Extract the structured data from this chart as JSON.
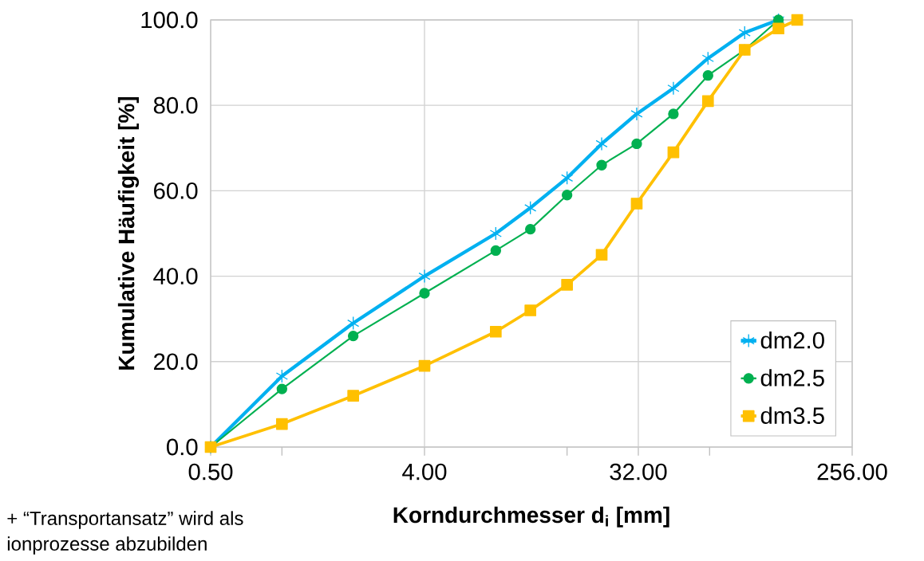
{
  "chart_data": {
    "type": "line",
    "xlabel": "Korndurchmesser d$_{i}$  [mm]",
    "ylabel": "Kumulative Häufigkeit [%]",
    "log": "x",
    "x": [
      0.5,
      1,
      2,
      4,
      8,
      11.2,
      16,
      22.4,
      31.5,
      45,
      63,
      90,
      125
    ],
    "series": [
      {
        "name": "dm2.0",
        "color": "#00b0f0",
        "marker": "cross",
        "values": [
          0,
          16.6,
          29,
          40,
          50,
          56,
          63,
          71,
          78,
          84,
          91,
          97,
          100
        ]
      },
      {
        "name": "dm2.5",
        "color": "#00b050",
        "marker": "circle",
        "values": [
          0,
          13.6,
          26,
          36,
          46,
          51,
          59,
          66,
          71,
          78,
          87,
          93,
          100
        ]
      },
      {
        "name": "dm3.5",
        "color": "#ffc000",
        "marker": "square",
        "x": [
          0.5,
          1,
          2,
          4,
          8,
          11.2,
          16,
          22.4,
          31.5,
          45,
          63,
          90,
          125,
          150
        ],
        "values": [
          0,
          5.4,
          12,
          19,
          27,
          32,
          38,
          45,
          57,
          69,
          81,
          93,
          98,
          100
        ]
      }
    ],
    "xlim": [
      0.5,
      256
    ],
    "xticks": [
      {
        "value": 0.5,
        "label": "0.50"
      },
      {
        "value": 1,
        "label": null
      },
      {
        "value": 4,
        "label": "4.00"
      },
      {
        "value": 16,
        "label": null
      },
      {
        "value": 32,
        "label": "32.00"
      },
      {
        "value": 64,
        "label": null
      },
      {
        "value": 256,
        "label": "256.00"
      }
    ],
    "ylim": [
      0,
      100
    ],
    "yticks": [
      {
        "value": 0,
        "label": "0.0"
      },
      {
        "value": 20,
        "label": "20.0"
      },
      {
        "value": 40,
        "label": "40.0"
      },
      {
        "value": 60,
        "label": "60.0"
      },
      {
        "value": 80,
        "label": "80.0"
      },
      {
        "value": 100,
        "label": "100.0"
      }
    ],
    "grid": true,
    "legend": "bottom right",
    "line_style": "solid",
    "annotations": [
      "+ “Transportansatz” wird als",
      "ionprozesse abzubilden"
    ]
  }
}
